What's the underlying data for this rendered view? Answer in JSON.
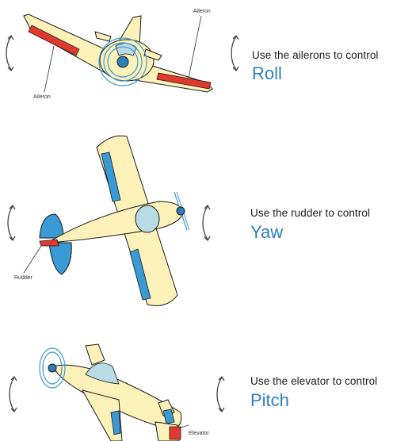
{
  "colors": {
    "body": "#fdf1ba",
    "outline": "#1a1a1a",
    "surface_blue": "#3a9ad3",
    "surface_red": "#e03a2e",
    "canopy": "#b8dbe6",
    "accent_text": "#2b7fc0"
  },
  "panels": [
    {
      "id": "roll",
      "caption": "Use the ailerons to control",
      "axis": "Roll",
      "labels": [
        "Aileron",
        "Aileron"
      ]
    },
    {
      "id": "yaw",
      "caption": "Use the rudder to control",
      "axis": "Yaw",
      "labels": [
        "Rudder"
      ]
    },
    {
      "id": "pitch",
      "caption": "Use the elevator to control",
      "axis": "Pitch",
      "labels": [
        "Elevator"
      ]
    }
  ],
  "icons": [
    "rotation-arrow-icon"
  ]
}
